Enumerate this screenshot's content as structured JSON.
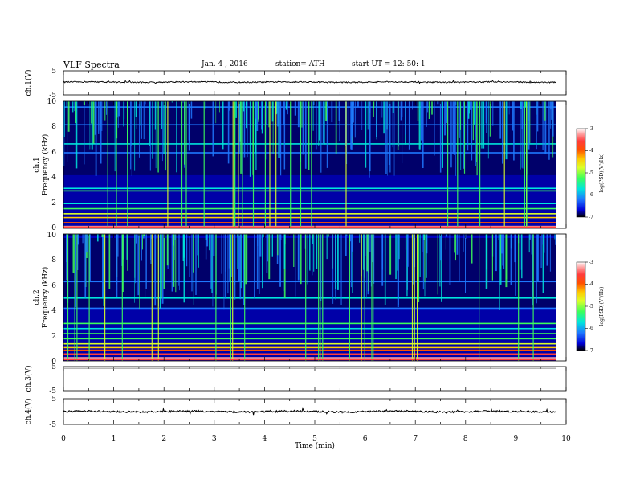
{
  "header": {
    "title": "VLF  Spectra",
    "date": "Jan. 4  , 2016",
    "station": "station= ATH",
    "start": "start  UT =   12: 50: 1"
  },
  "colors": {
    "spectrogram_scale": [
      "#000000",
      "#0000d8",
      "#1e78ff",
      "#00e6dc",
      "#3cff5a",
      "#dcff28",
      "#ffc800",
      "#ff5000",
      "#ff3c3c",
      "#ffa0a0",
      "#ffffff"
    ],
    "trace": "#000000",
    "flat_trace": "#8c8c8c"
  },
  "chart_data": [
    {
      "type": "line",
      "panel": "ch1",
      "ylabel": "ch.1(V)",
      "ylim": [
        -5,
        5
      ],
      "yticks": [
        "5",
        "-5"
      ],
      "mean": 0.3,
      "noise": 0.25,
      "xlim": [
        0,
        10
      ],
      "data_end": 9.8
    },
    {
      "type": "heatmap",
      "panel": "ch1-spec",
      "ylabel_top": "ch.1",
      "ylabel": "Frequency  (kHz)",
      "ylim": [
        0,
        10
      ],
      "yticks": [
        "10",
        "8",
        "6",
        "4",
        "2",
        "0"
      ],
      "xlim": [
        0,
        10
      ],
      "data_end": 9.8,
      "colorbar": {
        "label": "log(PSD)(V²/Hz)",
        "range": [
          -7,
          -3
        ],
        "ticks": [
          "-3",
          "-4",
          "-5",
          "-6",
          "-7"
        ]
      }
    },
    {
      "type": "heatmap",
      "panel": "ch2-spec",
      "ylabel_top": "ch.2",
      "ylabel": "Frequency  (kHz)",
      "ylim": [
        0,
        10
      ],
      "yticks": [
        "10",
        "8",
        "6",
        "4",
        "2",
        "0"
      ],
      "xlim": [
        0,
        10
      ],
      "data_end": 9.8,
      "colorbar": {
        "label": "log(PSD)(V²/Hz)",
        "range": [
          -7,
          -3
        ],
        "ticks": [
          "-3",
          "-4",
          "-5",
          "-6",
          "-7"
        ]
      }
    },
    {
      "type": "line",
      "panel": "ch3",
      "ylabel": "ch.3(V)",
      "ylim": [
        -5,
        5
      ],
      "yticks": [
        "5",
        "-5"
      ],
      "mean": 4.3,
      "noise": 0.0,
      "xlim": [
        0,
        10
      ],
      "data_end": 9.8
    },
    {
      "type": "line",
      "panel": "ch4",
      "ylabel": "ch.4(V)",
      "ylim": [
        -5,
        5
      ],
      "yticks": [
        "5",
        "-5"
      ],
      "mean": 0.0,
      "noise": 0.35,
      "xlim": [
        0,
        10
      ],
      "data_end": 9.8
    }
  ],
  "xaxis": {
    "label": "Time  (min)",
    "ticks": [
      "0",
      "1",
      "2",
      "3",
      "4",
      "5",
      "6",
      "7",
      "8",
      "9",
      "10"
    ]
  }
}
